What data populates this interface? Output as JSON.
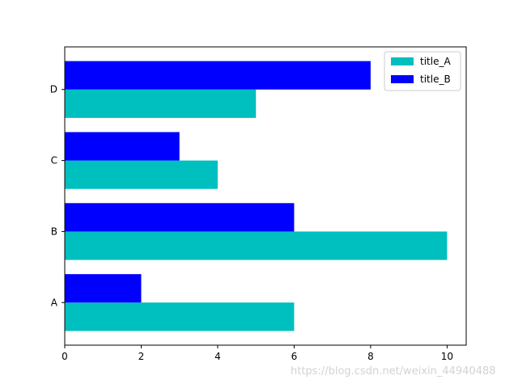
{
  "chart_data": {
    "type": "bar",
    "orientation": "horizontal",
    "categories": [
      "A",
      "B",
      "C",
      "D"
    ],
    "series": [
      {
        "name": "title_A",
        "values": [
          6,
          10,
          4,
          5
        ],
        "color": "#00bfbf"
      },
      {
        "name": "title_B",
        "values": [
          2,
          6,
          3,
          8
        ],
        "color": "#0000ff"
      }
    ],
    "xlim": [
      0,
      10.5
    ],
    "xticks": [
      0,
      2,
      4,
      6,
      8,
      10
    ],
    "title": "",
    "xlabel": "",
    "ylabel": "",
    "grid": false,
    "legend_position": "top-right"
  },
  "watermark": "https://blog.csdn.net/weixin_44940488"
}
